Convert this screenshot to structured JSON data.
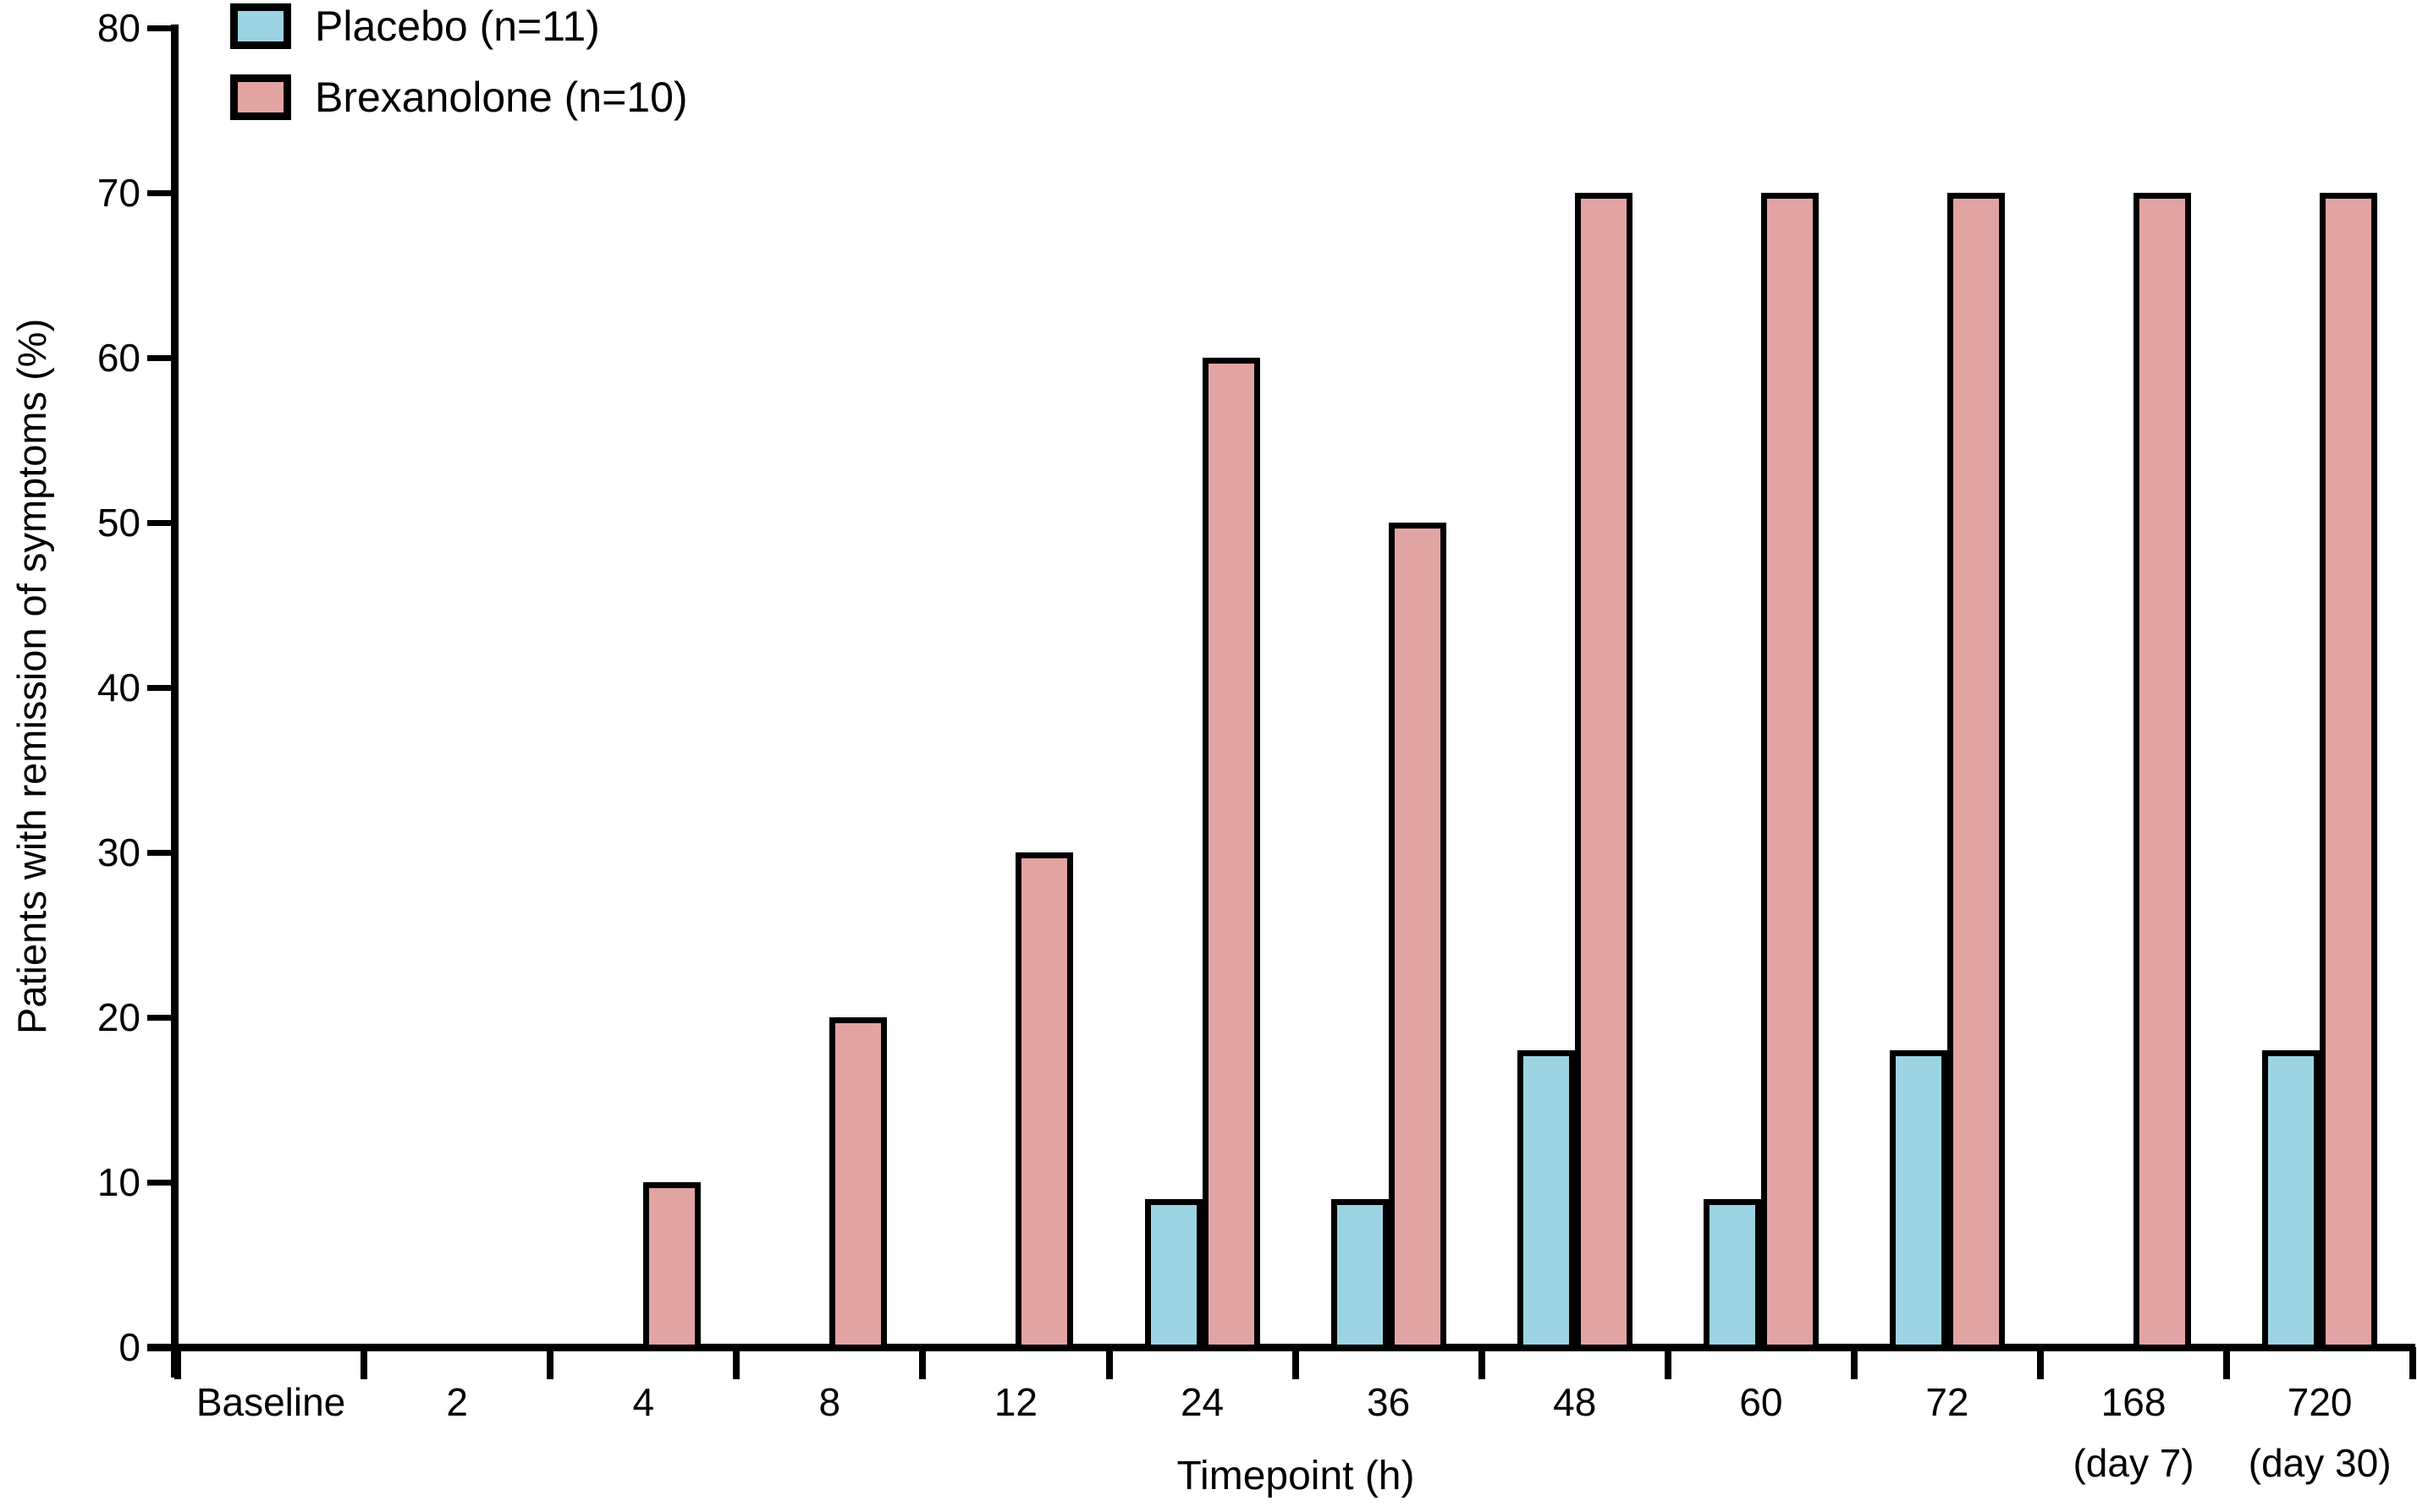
{
  "figure": {
    "background": "#ffffff",
    "axis_color": "#000000",
    "text_color": "#000000"
  },
  "chart_data": {
    "type": "bar",
    "title": "",
    "xlabel": "Timepoint (h)",
    "ylabel": "Patients with remission of symptoms (%)",
    "ylim": [
      0,
      80
    ],
    "yticks": [
      0,
      10,
      20,
      30,
      40,
      50,
      60,
      70,
      80
    ],
    "grid": false,
    "legend_position": "top-left",
    "categories": [
      "Baseline",
      "2",
      "4",
      "8",
      "12",
      "24",
      "36",
      "48",
      "60",
      "72",
      "168",
      "720"
    ],
    "category_sublabels": [
      "",
      "",
      "",
      "",
      "",
      "",
      "",
      "",
      "",
      "",
      "(day 7)",
      "(day 30)"
    ],
    "series": [
      {
        "name": "Placebo (n=11)",
        "key": "placebo",
        "color": "#9CD4E3",
        "values": [
          0,
          0,
          0,
          0,
          0,
          9,
          9,
          18,
          9,
          18,
          0,
          18
        ]
      },
      {
        "name": "Brexanolone (n=10)",
        "key": "brexanolone",
        "color": "#E2A4A3",
        "values": [
          0,
          0,
          10,
          20,
          30,
          60,
          50,
          70,
          70,
          70,
          70,
          70
        ]
      }
    ]
  }
}
